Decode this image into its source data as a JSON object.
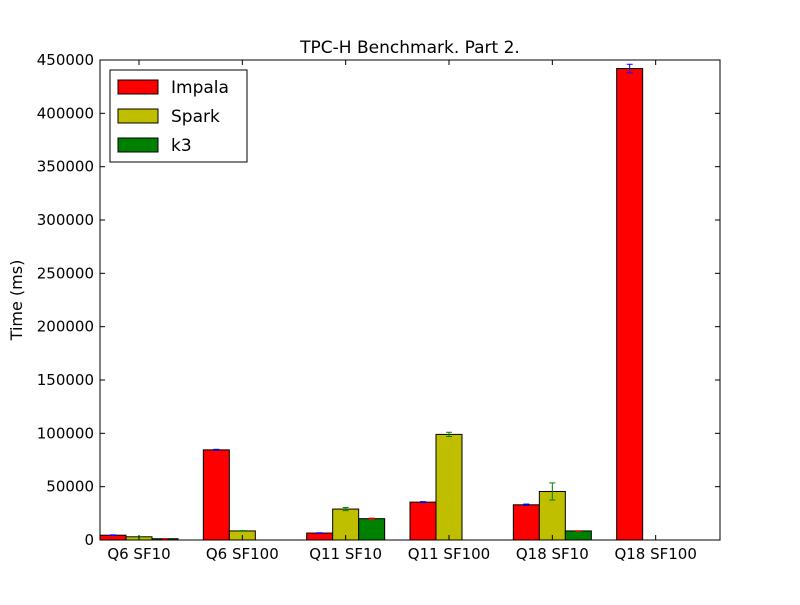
{
  "chart_data": {
    "type": "bar",
    "title": "TPC-H Benchmark. Part 2.",
    "xlabel": "",
    "ylabel": "Time (ms)",
    "ylim": [
      0,
      450000
    ],
    "yticks": [
      0,
      50000,
      100000,
      150000,
      200000,
      250000,
      300000,
      350000,
      400000,
      450000
    ],
    "categories": [
      "Q6 SF10",
      "Q6 SF100",
      "Q11 SF10",
      "Q11 SF100",
      "Q18 SF10",
      "Q18 SF100"
    ],
    "series": [
      {
        "name": "Impala",
        "color": "#ff0000",
        "error_color": "#0000ff",
        "values": [
          4500,
          84500,
          6500,
          35500,
          33000,
          442000
        ],
        "errors": [
          300,
          500,
          300,
          500,
          700,
          4000
        ]
      },
      {
        "name": "Spark",
        "color": "#bfbf00",
        "error_color": "#008000",
        "values": [
          3000,
          8500,
          29000,
          99000,
          45500,
          0
        ],
        "errors": [
          200,
          300,
          1500,
          2000,
          8000,
          0
        ]
      },
      {
        "name": "k3",
        "color": "#008000",
        "error_color": "#ff0000",
        "values": [
          1200,
          0,
          20000,
          0,
          8500,
          0
        ],
        "errors": [
          100,
          0,
          500,
          0,
          200,
          0
        ]
      }
    ],
    "legend_position": "top-left",
    "grid": false
  }
}
